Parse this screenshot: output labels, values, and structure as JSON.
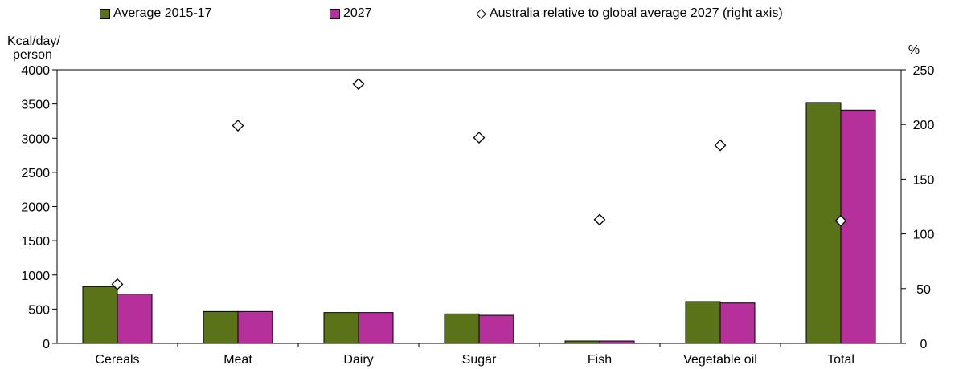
{
  "chart_data": {
    "type": "bar",
    "categories": [
      "Cereals",
      "Meat",
      "Dairy",
      "Sugar",
      "Fish",
      "Vegetable oil",
      "Total"
    ],
    "series": [
      {
        "name": "Average 2015-17",
        "color": "#5a7318",
        "values": [
          830,
          465,
          450,
          430,
          35,
          610,
          3520
        ],
        "axis": "left"
      },
      {
        "name": "2027",
        "color": "#b5309b",
        "values": [
          720,
          465,
          450,
          410,
          35,
          590,
          3410
        ],
        "axis": "left"
      },
      {
        "name": "Australia relative to global average 2027 (right axis)",
        "marker": "diamond",
        "values": [
          54,
          199,
          237,
          188,
          113,
          181,
          112
        ],
        "axis": "right"
      }
    ],
    "ylabel_left_line1": "Kcal/day/",
    "ylabel_left_line2": "person",
    "ylabel_right": "%",
    "ylim_left": [
      0,
      4000
    ],
    "ylim_right": [
      0,
      250
    ],
    "yticks_left": [
      0,
      500,
      1000,
      1500,
      2000,
      2500,
      3000,
      3500,
      4000
    ],
    "yticks_right": [
      0,
      50,
      100,
      150,
      200,
      250
    ],
    "grid": false,
    "legend_position": "top"
  }
}
